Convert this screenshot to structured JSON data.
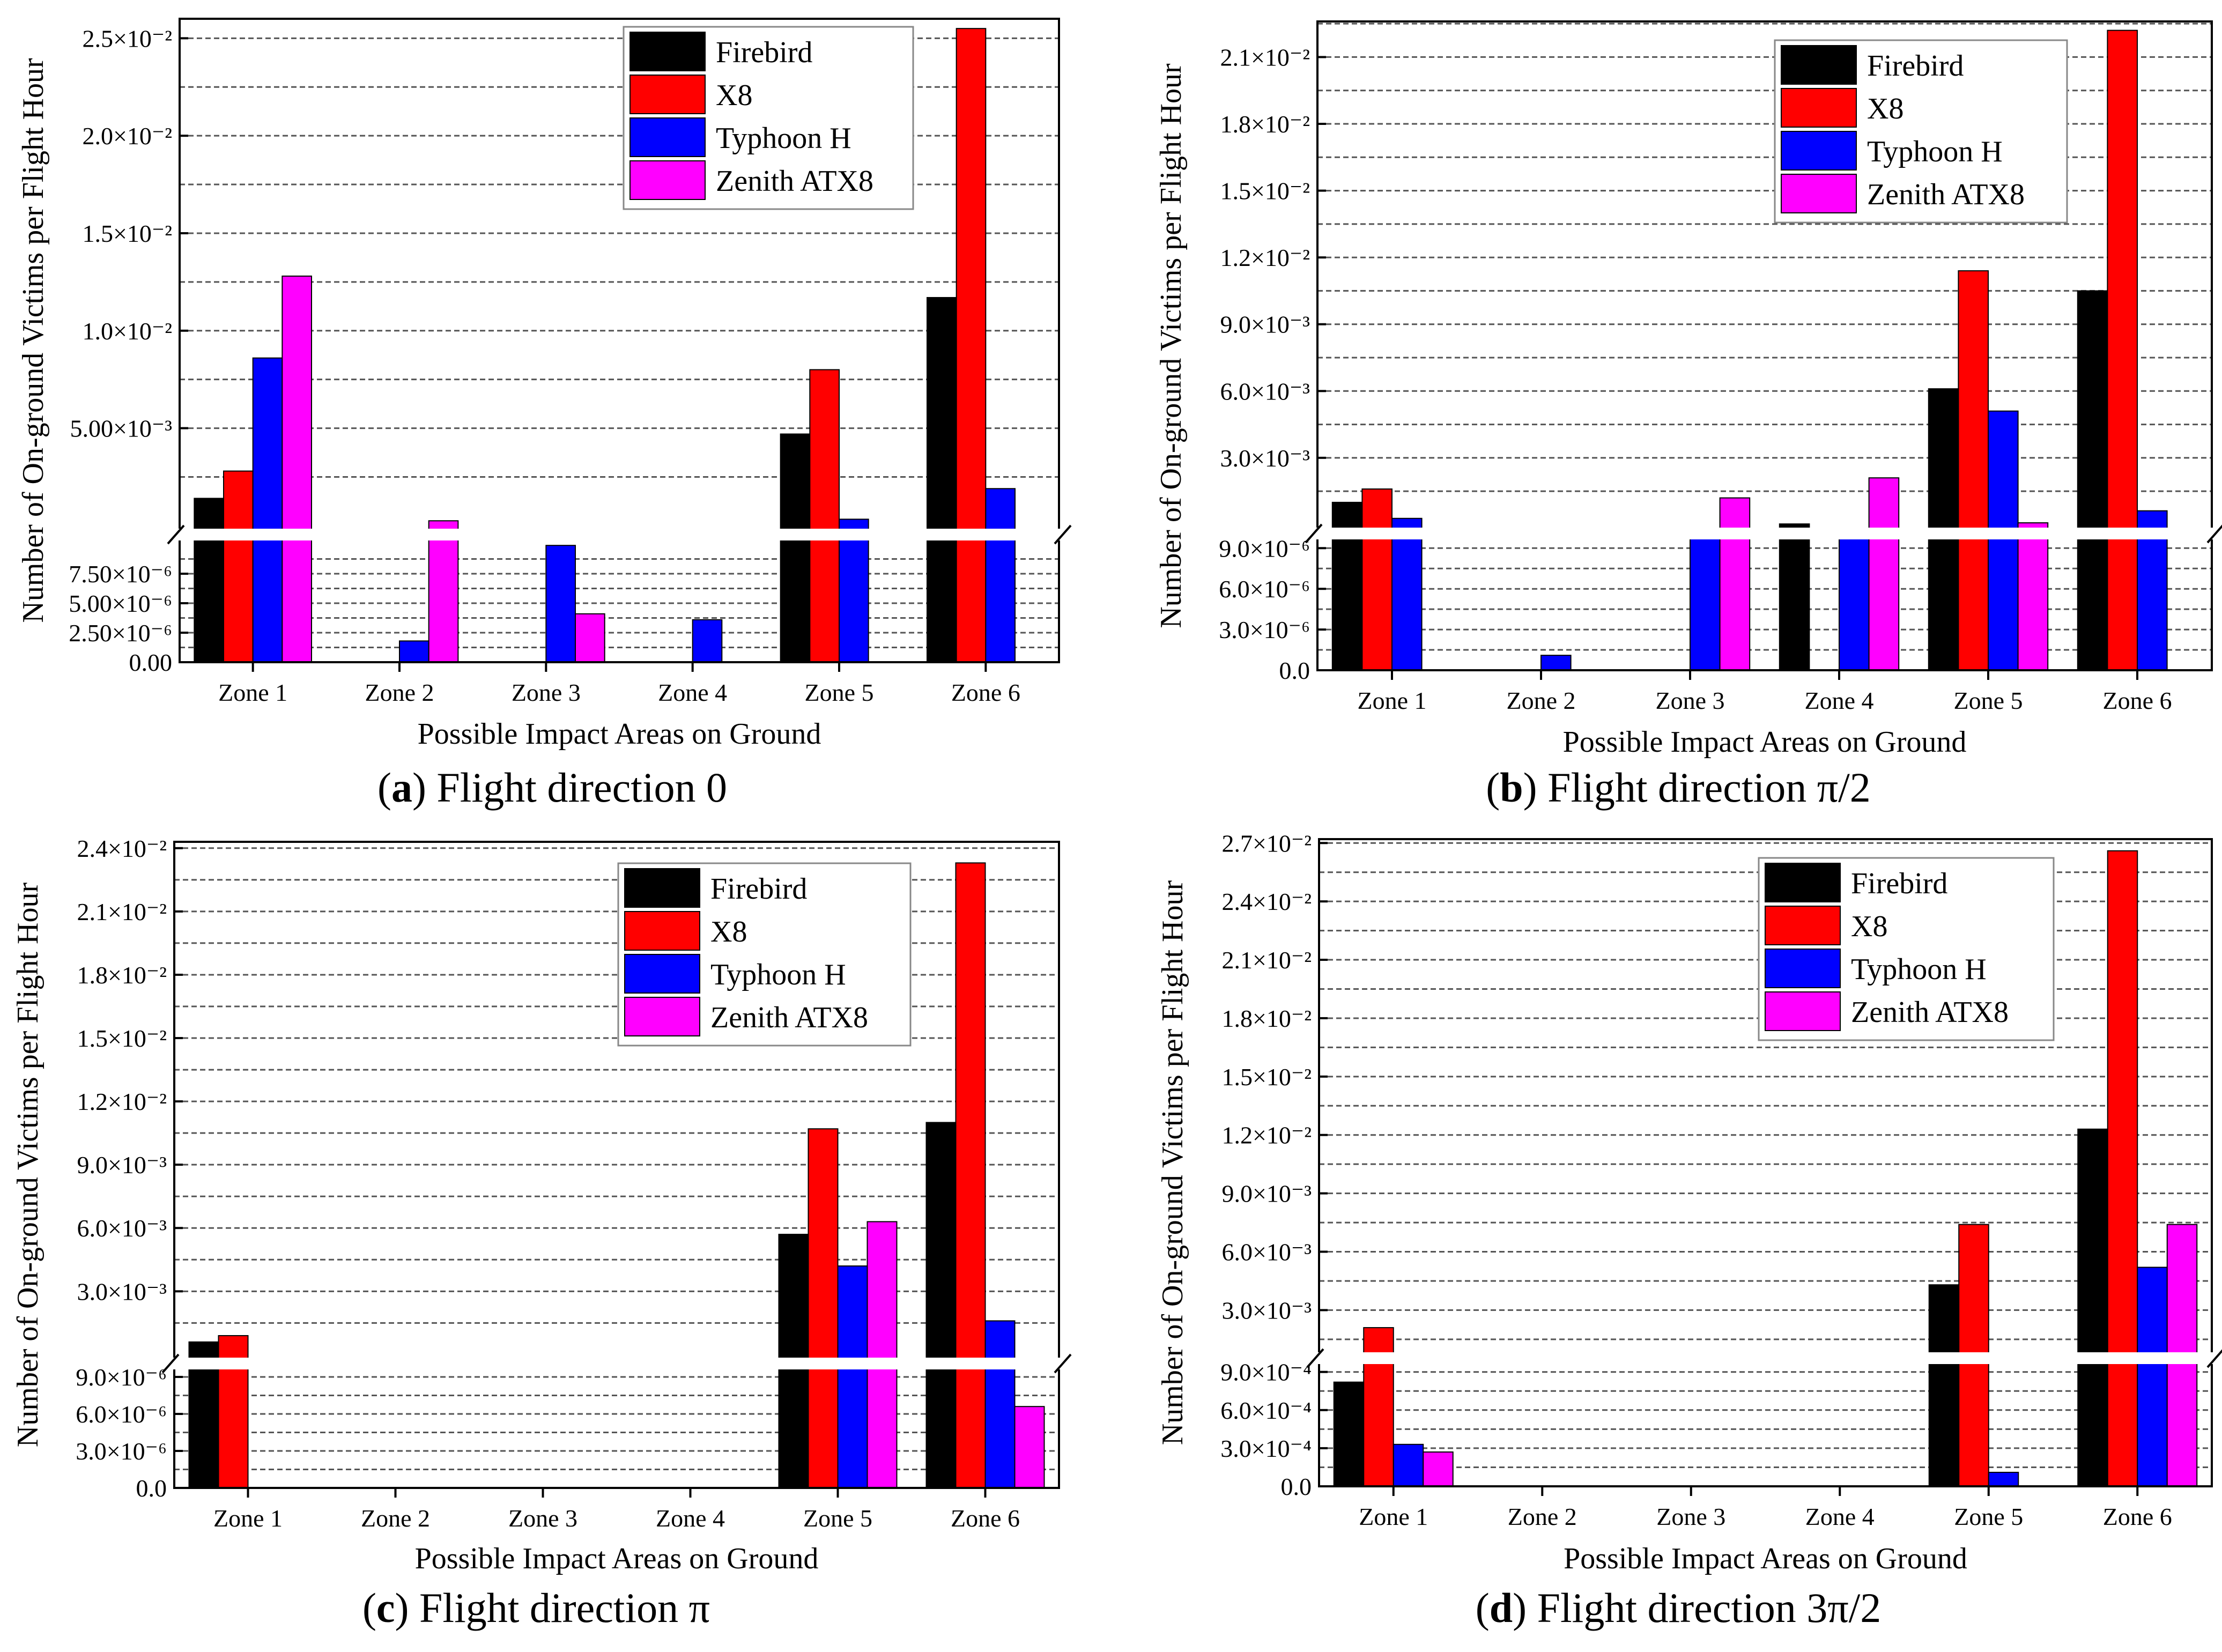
{
  "figure": {
    "colors": {
      "Firebird": "#000000",
      "X8": "#ff0000",
      "Typhoon H": "#0000ff",
      "Zenith ATX8": "#ff00ff"
    }
  },
  "chart_data": [
    {
      "panel": "a",
      "type": "bar",
      "caption_label": "a",
      "caption_text": " Flight direction 0",
      "xlabel": "Possible Impact Areas on Ground",
      "ylabel": "Number of On-ground Victims per Flight Hour",
      "categories": [
        "Zone 1",
        "Zone 2",
        "Zone 3",
        "Zone 4",
        "Zone 5",
        "Zone 6"
      ],
      "legend_position": "top-right",
      "y_axis_break": true,
      "lower_segment": {
        "ylim": [
          0,
          1e-05
        ],
        "ticks": [
          0,
          2.5e-06,
          5e-06,
          7.5e-06
        ],
        "tick_labels": [
          "0.00",
          "2.50×10⁻⁶",
          "5.00×10⁻⁶",
          "7.50×10⁻⁶"
        ]
      },
      "upper_segment": {
        "ylim": [
          1e-05,
          0.026
        ],
        "ticks": [
          0.005,
          0.01,
          0.015,
          0.02,
          0.025
        ],
        "tick_labels": [
          "5.00×10⁻³",
          "1.0×10⁻²",
          "1.5×10⁻²",
          "2.0×10⁻²",
          "2.5×10⁻²"
        ]
      },
      "series": [
        {
          "name": "Firebird",
          "values": [
            0.0014,
            0,
            0,
            0,
            0.0047,
            0.0117
          ]
        },
        {
          "name": "X8",
          "values": [
            0.0028,
            0,
            0,
            0,
            0.008,
            0.0255
          ]
        },
        {
          "name": "Typhoon H",
          "values": [
            0.0086,
            1.8e-06,
            9.9e-06,
            3.6e-06,
            0.00033,
            0.0019
          ]
        },
        {
          "name": "Zenith ATX8",
          "values": [
            0.0128,
            0.00025,
            4.1e-06,
            0,
            0,
            0
          ]
        }
      ]
    },
    {
      "panel": "b",
      "type": "bar",
      "caption_label": "b",
      "caption_text": " Flight direction π/2",
      "xlabel": "Possible Impact Areas on Ground",
      "ylabel": "Number of On-ground Victims per Flight Hour",
      "categories": [
        "Zone 1",
        "Zone 2",
        "Zone 3",
        "Zone 4",
        "Zone 5",
        "Zone 6"
      ],
      "legend_position": "top-right",
      "y_axis_break": true,
      "lower_segment": {
        "ylim": [
          0,
          1e-05
        ],
        "ticks": [
          0,
          3e-06,
          6e-06,
          9e-06
        ],
        "tick_labels": [
          "0.0",
          "3.0×10⁻⁶",
          "6.0×10⁻⁶",
          "9.0×10⁻⁶"
        ]
      },
      "upper_segment": {
        "ylim": [
          1e-05,
          0.0226
        ],
        "ticks": [
          0.003,
          0.006,
          0.009,
          0.012,
          0.015,
          0.018,
          0.021
        ],
        "tick_labels": [
          "3.0×10⁻³",
          "6.0×10⁻³",
          "9.0×10⁻³",
          "1.2×10⁻²",
          "1.5×10⁻²",
          "1.8×10⁻²",
          "2.1×10⁻²"
        ]
      },
      "series": [
        {
          "name": "Firebird",
          "values": [
            0.001,
            0,
            0,
            3e-05,
            0.0061,
            0.0105
          ]
        },
        {
          "name": "X8",
          "values": [
            0.0016,
            0,
            0,
            0,
            0.0114,
            0.0222
          ]
        },
        {
          "name": "Typhoon H",
          "values": [
            0.00028,
            1.1e-06,
            9.9e-06,
            9.9e-06,
            0.0051,
            0.00062
          ]
        },
        {
          "name": "Zenith ATX8",
          "values": [
            0,
            0,
            0.0012,
            0.0021,
            8e-05,
            0
          ]
        }
      ]
    },
    {
      "panel": "c",
      "type": "bar",
      "caption_label": "c",
      "caption_text": " Flight direction π",
      "xlabel": "Possible Impact Areas on Ground",
      "ylabel": "Number of On-ground Victims per Flight Hour",
      "categories": [
        "Zone 1",
        "Zone 2",
        "Zone 3",
        "Zone 4",
        "Zone 5",
        "Zone 6"
      ],
      "legend_position": "top-right",
      "y_axis_break": true,
      "lower_segment": {
        "ylim": [
          0,
          1e-05
        ],
        "ticks": [
          0,
          3e-06,
          6e-06,
          9e-06
        ],
        "tick_labels": [
          "0.0",
          "3.0×10⁻⁶",
          "6.0×10⁻⁶",
          "9.0×10⁻⁶"
        ]
      },
      "upper_segment": {
        "ylim": [
          1e-05,
          0.0243
        ],
        "ticks": [
          0.003,
          0.006,
          0.009,
          0.012,
          0.015,
          0.018,
          0.021,
          0.024
        ],
        "tick_labels": [
          "3.0×10⁻³",
          "6.0×10⁻³",
          "9.0×10⁻³",
          "1.2×10⁻²",
          "1.5×10⁻²",
          "1.8×10⁻²",
          "2.1×10⁻²",
          "2.4×10⁻²"
        ]
      },
      "series": [
        {
          "name": "Firebird",
          "values": [
            0.0006,
            0,
            0,
            0,
            0.0057,
            0.011
          ]
        },
        {
          "name": "X8",
          "values": [
            0.0009,
            0,
            0,
            0,
            0.0107,
            0.0233
          ]
        },
        {
          "name": "Typhoon H",
          "values": [
            0,
            0,
            0,
            0,
            0.0042,
            0.0016
          ]
        },
        {
          "name": "Zenith ATX8",
          "values": [
            0,
            0,
            0,
            0,
            0.0063,
            6.6e-06
          ]
        }
      ]
    },
    {
      "panel": "d",
      "type": "bar",
      "caption_label": "d",
      "caption_text": " Flight direction 3π/2",
      "xlabel": "Possible Impact Areas on Ground",
      "ylabel": "Number of On-ground Victims per Flight Hour",
      "categories": [
        "Zone 1",
        "Zone 2",
        "Zone 3",
        "Zone 4",
        "Zone 5",
        "Zone 6"
      ],
      "legend_position": "top-right",
      "y_axis_break": true,
      "lower_segment": {
        "ylim": [
          0,
          0.001
        ],
        "ticks": [
          0,
          0.0003,
          0.0006,
          0.0009
        ],
        "tick_labels": [
          "0.0",
          "3.0×10⁻⁴",
          "6.0×10⁻⁴",
          "9.0×10⁻⁴"
        ]
      },
      "upper_segment": {
        "ylim": [
          0.001,
          0.0272
        ],
        "ticks": [
          0.003,
          0.006,
          0.009,
          0.012,
          0.015,
          0.018,
          0.021,
          0.024,
          0.027
        ],
        "tick_labels": [
          "3.0×10⁻³",
          "6.0×10⁻³",
          "9.0×10⁻³",
          "1.2×10⁻²",
          "1.5×10⁻²",
          "1.8×10⁻²",
          "2.1×10⁻²",
          "2.4×10⁻²",
          "2.7×10⁻²"
        ]
      },
      "series": [
        {
          "name": "Firebird",
          "values": [
            0.00082,
            0,
            0,
            0,
            0.0043,
            0.0123
          ]
        },
        {
          "name": "X8",
          "values": [
            0.0021,
            0,
            0,
            0,
            0.0074,
            0.0266
          ]
        },
        {
          "name": "Typhoon H",
          "values": [
            0.00033,
            0,
            0,
            0,
            0.00011,
            0.0052
          ]
        },
        {
          "name": "Zenith ATX8",
          "values": [
            0.00027,
            0,
            0,
            0,
            0,
            0.0074
          ]
        }
      ]
    }
  ]
}
